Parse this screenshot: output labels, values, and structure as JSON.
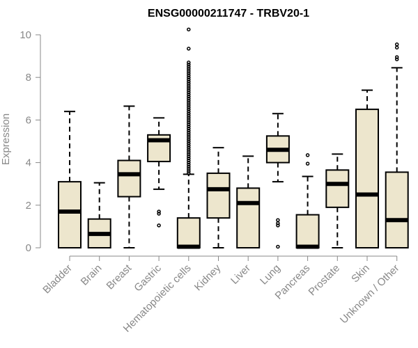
{
  "chart_data": {
    "type": "boxplot",
    "title": "ENSG00000211747 - TRBV20-1",
    "xlabel": "",
    "ylabel": "Expression",
    "ylim": [
      0,
      10
    ],
    "yticks": [
      0,
      2,
      4,
      6,
      8,
      10
    ],
    "box_color": "#ede6cd",
    "categories": [
      "Bladder",
      "Brain",
      "Breast",
      "Gastric",
      "Hematopoietic cells",
      "Kidney",
      "Liver",
      "Lung",
      "Pancreas",
      "Prostate",
      "Skin",
      "Unknown / Other"
    ],
    "boxes": [
      {
        "whisker_low": 0,
        "q1": 0,
        "median": 1.7,
        "q3": 3.1,
        "whisker_high": 6.4,
        "outliers": []
      },
      {
        "whisker_low": 0,
        "q1": 0,
        "median": 0.65,
        "q3": 1.35,
        "whisker_high": 3.05,
        "outliers": []
      },
      {
        "whisker_low": 0,
        "q1": 2.4,
        "median": 3.45,
        "q3": 4.1,
        "whisker_high": 6.65,
        "outliers": []
      },
      {
        "whisker_low": 2.75,
        "q1": 4.05,
        "median": 5.05,
        "q3": 5.3,
        "whisker_high": 6.1,
        "outliers": [
          1.05,
          1.6,
          1.7
        ]
      },
      {
        "whisker_low": 0,
        "q1": 0,
        "median": 0.05,
        "q3": 1.4,
        "whisker_high": 3.45,
        "outliers": [
          3.5,
          3.6,
          3.7,
          3.8,
          3.9,
          4.0,
          4.1,
          4.2,
          4.3,
          4.4,
          4.5,
          4.6,
          4.7,
          4.8,
          4.9,
          5.0,
          5.1,
          5.2,
          5.3,
          5.4,
          5.5,
          5.6,
          5.7,
          5.8,
          5.9,
          6.0,
          6.1,
          6.2,
          6.3,
          6.4,
          6.5,
          6.6,
          6.7,
          6.8,
          6.9,
          7.0,
          7.1,
          7.2,
          7.3,
          7.4,
          7.5,
          7.6,
          7.7,
          7.8,
          7.9,
          8.0,
          8.1,
          8.2,
          8.3,
          8.4,
          8.5,
          8.6,
          8.7,
          9.35,
          10.25
        ]
      },
      {
        "whisker_low": 0,
        "q1": 1.4,
        "median": 2.75,
        "q3": 3.5,
        "whisker_high": 4.7,
        "outliers": []
      },
      {
        "whisker_low": 0,
        "q1": 0,
        "median": 2.1,
        "q3": 2.8,
        "whisker_high": 4.3,
        "outliers": []
      },
      {
        "whisker_low": 3.1,
        "q1": 4.0,
        "median": 4.6,
        "q3": 5.25,
        "whisker_high": 6.3,
        "outliers": [
          0.05,
          1.05,
          1.15,
          1.3
        ]
      },
      {
        "whisker_low": 0,
        "q1": 0,
        "median": 0.05,
        "q3": 1.55,
        "whisker_high": 3.35,
        "outliers": [
          3.95,
          4.35
        ]
      },
      {
        "whisker_low": 0,
        "q1": 1.9,
        "median": 3.0,
        "q3": 3.65,
        "whisker_high": 4.4,
        "outliers": []
      },
      {
        "whisker_low": 0,
        "q1": 0,
        "median": 2.5,
        "q3": 6.5,
        "whisker_high": 7.4,
        "outliers": []
      },
      {
        "whisker_low": 0,
        "q1": 0,
        "median": 1.3,
        "q3": 3.55,
        "whisker_high": 8.45,
        "outliers": [
          8.85,
          8.95,
          9.4,
          9.55
        ]
      }
    ]
  }
}
